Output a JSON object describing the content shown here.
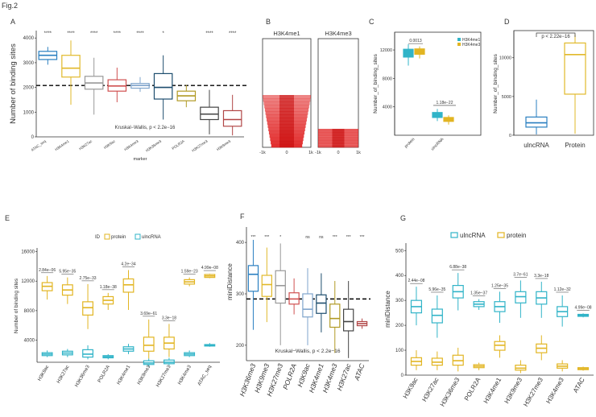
{
  "figure_label": "Fig.2",
  "chart_data": [
    {
      "panel": "A",
      "type": "boxplot",
      "ylabel": "Number of binding sites",
      "xlabel": "marker",
      "ylim": [
        0,
        4300
      ],
      "yticks": [
        0,
        1000,
        2000,
        3000,
        4000
      ],
      "reference_line": 2080,
      "annotation": "Kruskal−Wallis, p < 2.2e−16",
      "categories": [
        "ATAC_seq",
        "H3K4me1",
        "H3K27ac",
        "H3K9ac",
        "H3K4me3",
        "H3K36me3",
        "POLR2A",
        "H3K27me3",
        "H3K9me3"
      ],
      "significance": [
        "****",
        "****",
        "****",
        "****",
        "****",
        "*",
        "",
        "****",
        "****"
      ],
      "boxes": [
        {
          "color": "#2a7fc0",
          "q1": 3130,
          "median": 3300,
          "q3": 3460,
          "low": 2920,
          "high": 3640
        },
        {
          "color": "#e1b92a",
          "q1": 2420,
          "median": 2780,
          "q3": 3300,
          "low": 1300,
          "high": 3900
        },
        {
          "color": "#999999",
          "q1": 1930,
          "median": 2180,
          "q3": 2450,
          "low": 900,
          "high": 3200
        },
        {
          "color": "#d05050",
          "q1": 1850,
          "median": 2060,
          "q3": 2310,
          "low": 1400,
          "high": 2800
        },
        {
          "color": "#7fa4cc",
          "q1": 1970,
          "median": 2080,
          "q3": 2160,
          "low": 1820,
          "high": 2420
        },
        {
          "color": "#1d4d6e",
          "q1": 1530,
          "median": 2000,
          "q3": 2560,
          "low": 700,
          "high": 3300
        },
        {
          "color": "#b19a25",
          "q1": 1460,
          "median": 1660,
          "q3": 1850,
          "low": 1200,
          "high": 2100
        },
        {
          "color": "#444444",
          "q1": 700,
          "median": 920,
          "q3": 1200,
          "low": 100,
          "high": 1900
        },
        {
          "color": "#b14646",
          "q1": 430,
          "median": 700,
          "q3": 1060,
          "low": 60,
          "high": 1700
        }
      ]
    },
    {
      "panel": "B",
      "type": "heatmap",
      "tracks": [
        "H3K4me1",
        "H3K4me3"
      ],
      "xticks": [
        "-1k",
        "0",
        "1k"
      ],
      "color": "#e02020"
    },
    {
      "panel": "C",
      "type": "boxplot",
      "ylabel": "Number_of_binding_sites",
      "ylim": [
        0,
        14500
      ],
      "yticks": [
        4000,
        8000,
        12000
      ],
      "categories": [
        "protein",
        "uincRNA"
      ],
      "legend": [
        "H3K4me1",
        "H3K4me3"
      ],
      "legend_colors": [
        "#31b4c8",
        "#e2b522"
      ],
      "pvalues": [
        "0.0013",
        "1.18e−22"
      ],
      "boxes": [
        {
          "series": "H3K4me1",
          "color": "#31b4c8",
          "q1": 11000,
          "median": 11650,
          "q3": 12100,
          "low": 9800,
          "high": 12800
        },
        {
          "series": "H3K4me3",
          "color": "#e2b522",
          "q1": 11400,
          "median": 11800,
          "q3": 12150,
          "low": 10800,
          "high": 12500
        },
        {
          "series": "H3K4me1",
          "color": "#31b4c8",
          "q1": 2500,
          "median": 2850,
          "q3": 3200,
          "low": 2000,
          "high": 3700
        },
        {
          "series": "H3K4me3",
          "color": "#e2b522",
          "q1": 1950,
          "median": 2250,
          "q3": 2500,
          "low": 1500,
          "high": 2800
        }
      ]
    },
    {
      "panel": "D",
      "type": "boxplot",
      "ylabel": "Number_of_binding_sites",
      "ylim": [
        0,
        13500
      ],
      "yticks": [
        0,
        5000,
        10000
      ],
      "categories": [
        "ulncRNA",
        "Protein"
      ],
      "pvalue": "p < 2.22e−16",
      "boxes": [
        {
          "color": "#2a7fc0",
          "q1": 1050,
          "median": 1600,
          "q3": 2350,
          "low": 100,
          "high": 4600
        },
        {
          "color": "#e1b92a",
          "q1": 5300,
          "median": 10400,
          "q3": 11900,
          "low": 200,
          "high": 13000
        }
      ]
    },
    {
      "panel": "E",
      "type": "boxplot",
      "ylabel": "Number of binding sites",
      "ylim": [
        1000,
        16500
      ],
      "yticks": [
        4000,
        8000,
        12000,
        16000
      ],
      "legend_title": "ID",
      "legend": [
        "protein",
        "ulncRNA"
      ],
      "legend_colors": [
        "#e2b522",
        "#31b4c8"
      ],
      "categories": [
        "H3K9ac",
        "H3K27ac",
        "H3K36me3",
        "POLR2A",
        "H3K4me1",
        "H3K9me3",
        "H3K27me3",
        "H3K4me3",
        "ATAC_seq"
      ],
      "pvalues": [
        "2.84e−06",
        "5.95e−35",
        "2.75e−33",
        "1.18e−38",
        "4.2e−34",
        "3.69e−61",
        "3.3e−18",
        "1.59e−23",
        "4.99e−08"
      ],
      "protein": [
        {
          "q1": 10700,
          "median": 11300,
          "q3": 11800,
          "low": 9500,
          "high": 12700
        },
        {
          "q1": 10100,
          "median": 10800,
          "q3": 11500,
          "low": 8900,
          "high": 12500
        },
        {
          "q1": 7400,
          "median": 8400,
          "q3": 9200,
          "low": 5500,
          "high": 11600
        },
        {
          "q1": 8900,
          "median": 9400,
          "q3": 9900,
          "low": 8100,
          "high": 10400
        },
        {
          "q1": 10500,
          "median": 11500,
          "q3": 12300,
          "low": 8100,
          "high": 13500
        },
        {
          "q1": 2500,
          "median": 3300,
          "q3": 4400,
          "low": 1500,
          "high": 6800
        },
        {
          "q1": 2800,
          "median": 3600,
          "q3": 4400,
          "low": 1700,
          "high": 6200
        },
        {
          "q1": 11600,
          "median": 11900,
          "q3": 12200,
          "low": 11300,
          "high": 12500
        },
        {
          "q1": 12500,
          "median": 12700,
          "q3": 12900,
          "low": 12400,
          "high": 13000
        }
      ],
      "ulncRNA": [
        {
          "q1": 1900,
          "median": 2100,
          "q3": 2300,
          "low": 1700,
          "high": 2600
        },
        {
          "q1": 2000,
          "median": 2250,
          "q3": 2500,
          "low": 1700,
          "high": 2800
        },
        {
          "q1": 1700,
          "median": 2100,
          "q3": 2700,
          "low": 1400,
          "high": 3300
        },
        {
          "q1": 1600,
          "median": 1750,
          "q3": 1900,
          "low": 1400,
          "high": 2100
        },
        {
          "q1": 2500,
          "median": 2800,
          "q3": 3100,
          "low": 2100,
          "high": 3500
        },
        {
          "q1": 700,
          "median": 900,
          "q3": 1200,
          "low": 400,
          "high": 1500
        },
        {
          "q1": 800,
          "median": 1000,
          "q3": 1300,
          "low": 600,
          "high": 1600
        },
        {
          "q1": 1900,
          "median": 2100,
          "q3": 2300,
          "low": 1700,
          "high": 2600
        },
        {
          "q1": 3200,
          "median": 3300,
          "q3": 3400,
          "low": 3100,
          "high": 3600
        }
      ]
    },
    {
      "panel": "F",
      "type": "boxplot",
      "ylabel": "miniDistance",
      "ylim": [
        170,
        430
      ],
      "yticks": [
        200,
        300,
        400
      ],
      "reference_line": 290,
      "annotation": "Kruskal−Wallis, p < 2.2e−16",
      "categories": [
        "H3K36me3",
        "H3K9me3",
        "H3K27me3",
        "POLR2A",
        "H3K9ac",
        "H3K4me1",
        "H3K4me3",
        "H3K27ac",
        "ATAC"
      ],
      "significance": [
        "***",
        "***",
        "*",
        "",
        "ns",
        "ns",
        "***",
        "***",
        "***"
      ],
      "boxes": [
        {
          "color": "#2a7fc0",
          "q1": 305,
          "median": 338,
          "q3": 355,
          "low": 230,
          "high": 405
        },
        {
          "color": "#e1b92a",
          "q1": 295,
          "median": 318,
          "q3": 336,
          "low": 245,
          "high": 390
        },
        {
          "color": "#999999",
          "q1": 282,
          "median": 316,
          "q3": 345,
          "low": 200,
          "high": 398
        },
        {
          "color": "#d05050",
          "q1": 280,
          "median": 290,
          "q3": 302,
          "low": 260,
          "high": 330
        },
        {
          "color": "#7fa4cc",
          "q1": 255,
          "median": 270,
          "q3": 300,
          "low": 200,
          "high": 350
        },
        {
          "color": "#1d4d6e",
          "q1": 262,
          "median": 282,
          "q3": 298,
          "low": 225,
          "high": 340
        },
        {
          "color": "#b19a25",
          "q1": 235,
          "median": 252,
          "q3": 280,
          "low": 185,
          "high": 325
        },
        {
          "color": "#444444",
          "q1": 228,
          "median": 246,
          "q3": 270,
          "low": 175,
          "high": 325
        },
        {
          "color": "#b14646",
          "q1": 238,
          "median": 242,
          "q3": 246,
          "low": 232,
          "high": 252
        }
      ]
    },
    {
      "panel": "G",
      "type": "boxplot",
      "ylabel": "miniDistance",
      "ylim": [
        0,
        530
      ],
      "yticks": [
        0,
        100,
        200,
        300,
        400,
        500
      ],
      "legend": [
        "ulncRNA",
        "protein"
      ],
      "legend_colors": [
        "#31b4c8",
        "#e2b522"
      ],
      "categories": [
        "H3K9ac",
        "H3K27ac",
        "H3K36me3",
        "POLR2A",
        "H3K4me1",
        "H3K9me3",
        "H3K27me3",
        "H3K4me3",
        "ATAC"
      ],
      "pvalues": [
        "2.44e−08",
        "5.96e−35",
        "6.88e−38",
        "1.35e−37",
        "1.25e−35",
        "3.7e−61",
        "3.3e−18",
        "1.12e−32",
        "4.99e−08"
      ],
      "ulncRNA": [
        {
          "q1": 250,
          "median": 275,
          "q3": 300,
          "low": 200,
          "high": 355
        },
        {
          "q1": 210,
          "median": 240,
          "q3": 265,
          "low": 150,
          "high": 320
        },
        {
          "q1": 310,
          "median": 335,
          "q3": 360,
          "low": 260,
          "high": 410
        },
        {
          "q1": 275,
          "median": 285,
          "q3": 295,
          "low": 262,
          "high": 305
        },
        {
          "q1": 255,
          "median": 275,
          "q3": 295,
          "low": 210,
          "high": 335
        },
        {
          "q1": 290,
          "median": 315,
          "q3": 335,
          "low": 230,
          "high": 380
        },
        {
          "q1": 285,
          "median": 310,
          "q3": 335,
          "low": 230,
          "high": 375
        },
        {
          "q1": 235,
          "median": 255,
          "q3": 275,
          "low": 195,
          "high": 320
        },
        {
          "q1": 236,
          "median": 240,
          "q3": 244,
          "low": 232,
          "high": 248
        }
      ],
      "protein": [
        {
          "q1": 40,
          "median": 55,
          "q3": 70,
          "low": 20,
          "high": 100
        },
        {
          "q1": 40,
          "median": 52,
          "q3": 68,
          "low": 20,
          "high": 95
        },
        {
          "q1": 40,
          "median": 58,
          "q3": 80,
          "low": 15,
          "high": 110
        },
        {
          "q1": 30,
          "median": 36,
          "q3": 42,
          "low": 20,
          "high": 50
        },
        {
          "q1": 100,
          "median": 120,
          "q3": 135,
          "low": 70,
          "high": 160
        },
        {
          "q1": 20,
          "median": 28,
          "q3": 40,
          "low": 8,
          "high": 60
        },
        {
          "q1": 90,
          "median": 108,
          "q3": 125,
          "low": 60,
          "high": 160
        },
        {
          "q1": 28,
          "median": 36,
          "q3": 45,
          "low": 15,
          "high": 60
        },
        {
          "q1": 22,
          "median": 26,
          "q3": 30,
          "low": 18,
          "high": 34
        }
      ]
    }
  ]
}
